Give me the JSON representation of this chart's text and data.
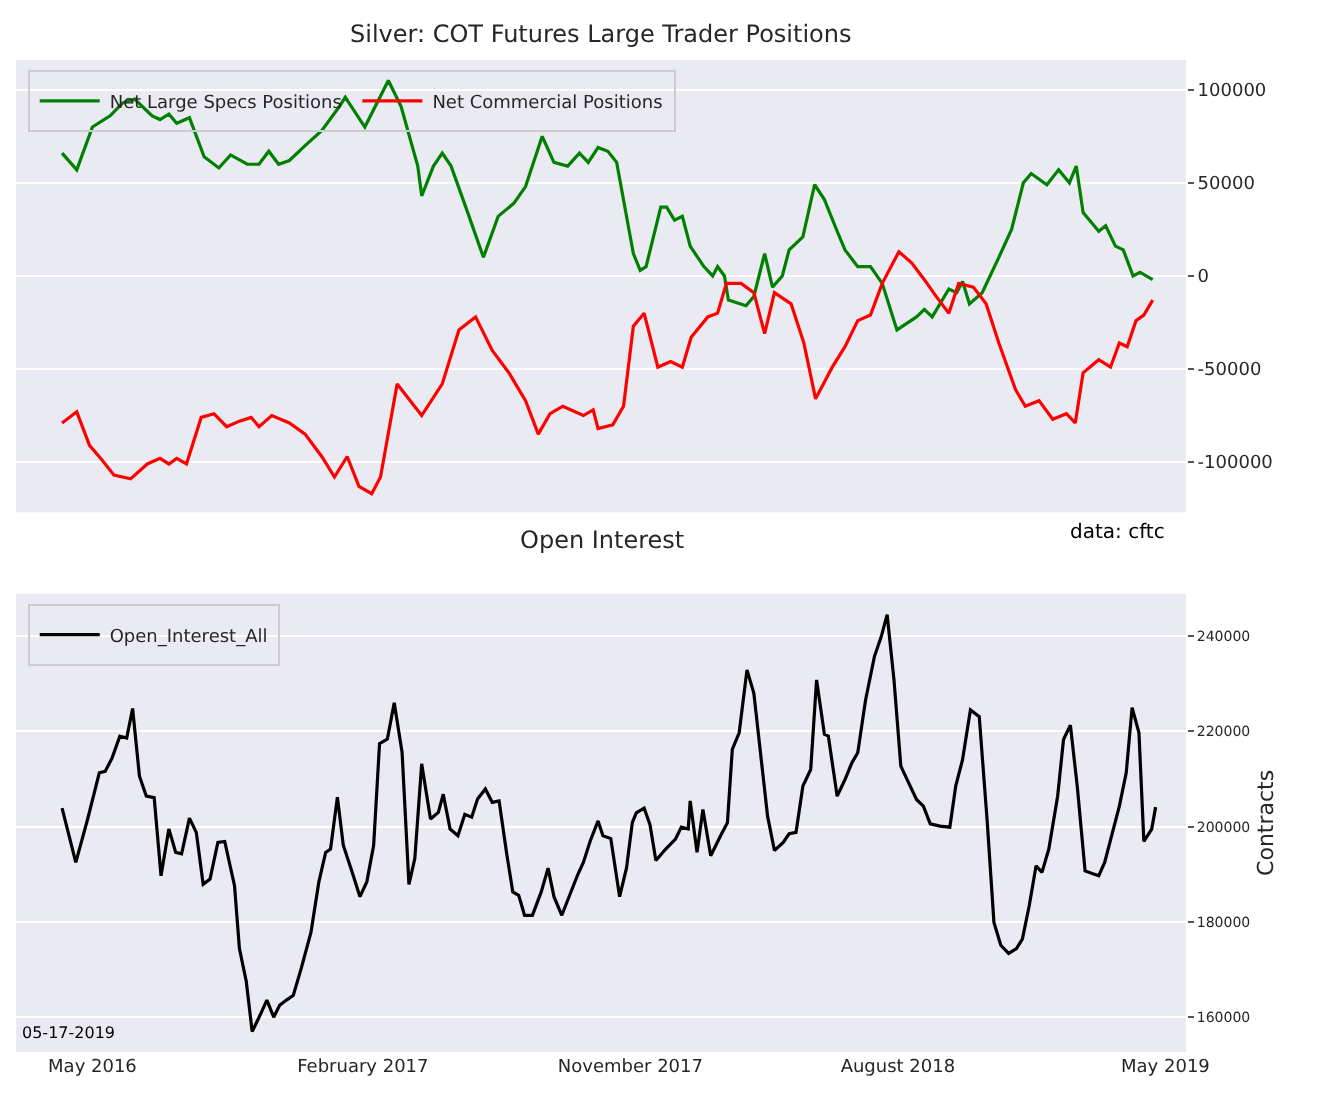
{
  "chart_data": [
    {
      "type": "line",
      "title": "Silver: COT Futures Large Trader Positions",
      "annotations": [
        "data: cftc"
      ],
      "xlim": [
        "2016-02-13",
        "2019-05-22"
      ],
      "ylim": [
        -127000,
        116000
      ],
      "yticks": [
        -100000,
        -50000,
        0,
        50000,
        100000
      ],
      "tick_labels": "y",
      "grid": "y",
      "legend": "top left",
      "series": [
        {
          "name": "Net Large Specs Positions",
          "color": "#008000",
          "x": [
            "2016-03-31",
            "2016-04-15",
            "2016-05-01",
            "2016-05-19",
            "2016-06-01",
            "2016-06-13",
            "2016-07-01",
            "2016-07-09",
            "2016-07-18",
            "2016-07-26",
            "2016-08-08",
            "2016-08-23",
            "2016-09-07",
            "2016-09-19",
            "2016-10-06",
            "2016-10-18",
            "2016-10-28",
            "2016-11-07",
            "2016-11-18",
            "2016-12-04",
            "2016-12-21",
            "2017-01-08",
            "2017-01-14",
            "2017-02-03",
            "2017-02-27",
            "2017-03-12",
            "2017-03-29",
            "2017-04-02",
            "2017-04-14",
            "2017-04-23",
            "2017-05-02",
            "2017-05-19",
            "2017-06-04",
            "2017-06-19",
            "2017-07-05",
            "2017-07-17",
            "2017-08-03",
            "2017-08-15",
            "2017-08-29",
            "2017-09-10",
            "2017-09-19",
            "2017-09-29",
            "2017-10-09",
            "2017-10-18",
            "2017-11-04",
            "2017-11-11",
            "2017-11-17",
            "2017-12-02",
            "2017-12-08",
            "2017-12-16",
            "2017-12-24",
            "2018-01-01",
            "2018-01-15",
            "2018-01-24",
            "2018-01-29",
            "2018-02-05",
            "2018-02-09",
            "2018-02-27",
            "2018-03-07",
            "2018-03-18",
            "2018-03-26",
            "2018-04-05",
            "2018-04-12",
            "2018-04-26",
            "2018-05-08",
            "2018-05-18",
            "2018-05-31",
            "2018-06-08",
            "2018-06-21",
            "2018-07-04",
            "2018-07-16",
            "2018-07-31",
            "2018-08-20",
            "2018-08-28",
            "2018-09-05",
            "2018-09-22",
            "2018-09-30",
            "2018-10-06",
            "2018-10-13",
            "2018-10-26",
            "2018-11-12",
            "2018-11-25",
            "2018-12-07",
            "2018-12-15",
            "2018-12-31",
            "2019-01-12",
            "2019-01-23",
            "2019-01-30",
            "2019-02-06",
            "2019-02-22",
            "2019-03-01",
            "2019-03-11",
            "2019-03-19",
            "2019-03-29",
            "2019-04-05",
            "2019-04-18"
          ],
          "values": [
            66000,
            57000,
            80000,
            86000,
            93000,
            95000,
            86000,
            84000,
            87000,
            82000,
            85000,
            64000,
            58000,
            65000,
            60000,
            60000,
            67000,
            60000,
            62000,
            70000,
            78000,
            91000,
            96000,
            80000,
            105000,
            91000,
            59000,
            43000,
            59000,
            66000,
            59000,
            34000,
            10000,
            32000,
            39000,
            48000,
            75000,
            61000,
            59000,
            66000,
            61000,
            69000,
            67000,
            61000,
            12000,
            3000,
            5000,
            37000,
            37000,
            30000,
            32000,
            16000,
            5000,
            0,
            5000,
            0,
            -13000,
            -16000,
            -11000,
            12000,
            -6000,
            0,
            14000,
            21000,
            49000,
            41000,
            24000,
            14000,
            5000,
            5000,
            -4000,
            -29000,
            -22000,
            -18000,
            -22000,
            -7000,
            -9000,
            -3000,
            -15000,
            -9000,
            10000,
            25000,
            50000,
            55000,
            49000,
            57000,
            50000,
            59000,
            34000,
            24000,
            27000,
            16000,
            14000,
            0,
            2000,
            -2000
          ]
        },
        {
          "name": "Net Commercial Positions",
          "color": "#ff0000",
          "x": [
            "2016-03-31",
            "2016-04-15",
            "2016-04-28",
            "2016-05-11",
            "2016-05-23",
            "2016-06-09",
            "2016-06-26",
            "2016-07-09",
            "2016-07-18",
            "2016-07-26",
            "2016-08-05",
            "2016-08-20",
            "2016-09-02",
            "2016-09-15",
            "2016-09-28",
            "2016-10-10",
            "2016-10-18",
            "2016-10-31",
            "2016-11-18",
            "2016-12-04",
            "2016-12-21",
            "2017-01-03",
            "2017-01-16",
            "2017-01-28",
            "2017-02-10",
            "2017-02-19",
            "2017-03-08",
            "2017-04-02",
            "2017-04-23",
            "2017-05-10",
            "2017-05-27",
            "2017-06-13",
            "2017-06-30",
            "2017-07-17",
            "2017-07-30",
            "2017-08-11",
            "2017-08-24",
            "2017-09-14",
            "2017-09-24",
            "2017-09-29",
            "2017-10-14",
            "2017-10-25",
            "2017-11-04",
            "2017-11-15",
            "2017-11-29",
            "2017-12-12",
            "2017-12-24",
            "2018-01-02",
            "2018-01-19",
            "2018-01-29",
            "2018-02-07",
            "2018-02-22",
            "2018-03-07",
            "2018-03-18",
            "2018-03-28",
            "2018-04-14",
            "2018-04-27",
            "2018-05-09",
            "2018-05-26",
            "2018-06-08",
            "2018-06-21",
            "2018-07-04",
            "2018-07-16",
            "2018-08-02",
            "2018-08-15",
            "2018-08-28",
            "2018-09-09",
            "2018-09-22",
            "2018-10-02",
            "2018-10-17",
            "2018-10-30",
            "2018-11-12",
            "2018-11-29",
            "2018-12-09",
            "2018-12-23",
            "2019-01-06",
            "2019-01-20",
            "2019-01-29",
            "2019-02-06",
            "2019-02-22",
            "2019-03-06",
            "2019-03-15",
            "2019-03-23",
            "2019-04-01",
            "2019-04-09",
            "2019-04-18"
          ],
          "values": [
            -79000,
            -73000,
            -91000,
            -99000,
            -107000,
            -109000,
            -101000,
            -98000,
            -101000,
            -98000,
            -101000,
            -76000,
            -74000,
            -81000,
            -78000,
            -76000,
            -81000,
            -75000,
            -79000,
            -85000,
            -97000,
            -108000,
            -97000,
            -113000,
            -117000,
            -108000,
            -58000,
            -75000,
            -58000,
            -29000,
            -22000,
            -40000,
            -52000,
            -67000,
            -85000,
            -74000,
            -70000,
            -75000,
            -72000,
            -82000,
            -80000,
            -70000,
            -27000,
            -20000,
            -49000,
            -46000,
            -49000,
            -33000,
            -22000,
            -20000,
            -4000,
            -4000,
            -9000,
            -31000,
            -9000,
            -15000,
            -36000,
            -66000,
            -49000,
            -38000,
            -24000,
            -21000,
            -4000,
            13000,
            7000,
            -2000,
            -11000,
            -20000,
            -4000,
            -6000,
            -15000,
            -36000,
            -61000,
            -70000,
            -67000,
            -77000,
            -74000,
            -79000,
            -52000,
            -45000,
            -49000,
            -36000,
            -38000,
            -24000,
            -21000,
            -13000
          ]
        }
      ]
    },
    {
      "type": "line",
      "title": "Open Interest",
      "ylabel": "Contracts",
      "annotations": [
        "05-17-2019"
      ],
      "xlim": [
        "2016-02-13",
        "2019-05-22"
      ],
      "xticks": [
        {
          "value": "2016-05-01",
          "label": "May 2016"
        },
        {
          "value": "2017-02-01",
          "label": "February 2017"
        },
        {
          "value": "2017-11-01",
          "label": "November 2017"
        },
        {
          "value": "2018-08-01",
          "label": "August 2018"
        },
        {
          "value": "2019-05-01",
          "label": "May 2019"
        }
      ],
      "ylim": [
        152700,
        248900
      ],
      "yticks": [
        160000,
        180000,
        200000,
        220000,
        240000
      ],
      "grid": "y",
      "legend": "top left",
      "series": [
        {
          "name": "Open_Interest_All",
          "color": "#000000",
          "x": [
            "2016-03-31",
            "2016-04-14",
            "2016-04-26",
            "2016-05-08",
            "2016-05-14",
            "2016-05-21",
            "2016-05-29",
            "2016-06-05",
            "2016-06-11",
            "2016-06-18",
            "2016-06-25",
            "2016-07-03",
            "2016-07-10",
            "2016-07-18",
            "2016-07-25",
            "2016-07-31",
            "2016-08-08",
            "2016-08-15",
            "2016-08-22",
            "2016-08-29",
            "2016-09-06",
            "2016-09-13",
            "2016-09-23",
            "2016-09-28",
            "2016-10-05",
            "2016-10-11",
            "2016-10-19",
            "2016-10-26",
            "2016-11-02",
            "2016-11-08",
            "2016-11-15",
            "2016-11-22",
            "2016-11-30",
            "2016-12-10",
            "2016-12-18",
            "2016-12-25",
            "2016-12-30",
            "2017-01-06",
            "2017-01-12",
            "2017-01-21",
            "2017-01-29",
            "2017-02-05",
            "2017-02-12",
            "2017-02-18",
            "2017-02-26",
            "2017-03-05",
            "2017-03-13",
            "2017-03-20",
            "2017-03-26",
            "2017-04-02",
            "2017-04-11",
            "2017-04-19",
            "2017-04-24",
            "2017-05-01",
            "2017-05-09",
            "2017-05-16",
            "2017-05-23",
            "2017-05-29",
            "2017-06-06",
            "2017-06-13",
            "2017-06-20",
            "2017-06-28",
            "2017-07-04",
            "2017-07-10",
            "2017-07-16",
            "2017-07-24",
            "2017-08-02",
            "2017-08-09",
            "2017-08-15",
            "2017-08-23",
            "2017-08-31",
            "2017-09-08",
            "2017-09-14",
            "2017-09-21",
            "2017-09-29",
            "2017-10-04",
            "2017-10-12",
            "2017-10-21",
            "2017-10-28",
            "2017-11-03",
            "2017-11-07",
            "2017-11-15",
            "2017-11-21",
            "2017-11-27",
            "2017-12-07",
            "2017-12-17",
            "2017-12-23",
            "2017-12-30",
            "2018-01-01",
            "2018-01-08",
            "2018-01-14",
            "2018-01-22",
            "2018-02-01",
            "2018-02-08",
            "2018-02-13",
            "2018-02-20",
            "2018-02-28",
            "2018-03-07",
            "2018-03-13",
            "2018-03-21",
            "2018-03-28",
            "2018-04-06",
            "2018-04-12",
            "2018-04-19",
            "2018-04-26",
            "2018-05-04",
            "2018-05-10",
            "2018-05-18",
            "2018-05-22",
            "2018-05-31",
            "2018-06-08",
            "2018-06-15",
            "2018-06-21",
            "2018-06-29",
            "2018-07-08",
            "2018-07-15",
            "2018-07-21",
            "2018-07-28",
            "2018-08-04",
            "2018-08-12",
            "2018-08-20",
            "2018-08-27",
            "2018-09-03",
            "2018-09-13",
            "2018-09-23",
            "2018-09-29",
            "2018-10-06",
            "2018-10-14",
            "2018-10-23",
            "2018-10-31",
            "2018-11-07",
            "2018-11-14",
            "2018-11-22",
            "2018-11-30",
            "2018-12-06",
            "2018-12-13",
            "2018-12-20",
            "2018-12-26",
            "2019-01-02",
            "2019-01-11",
            "2019-01-17",
            "2019-01-24",
            "2019-01-31",
            "2019-02-08",
            "2019-02-16",
            "2019-02-22",
            "2019-02-28",
            "2019-03-08",
            "2019-03-15",
            "2019-03-22",
            "2019-03-28",
            "2019-04-04",
            "2019-04-09",
            "2019-04-17",
            "2019-04-21"
          ],
          "values": [
            203900,
            192500,
            201500,
            211300,
            211600,
            214400,
            219000,
            218600,
            224800,
            210600,
            206400,
            206100,
            189700,
            199500,
            194600,
            194300,
            201800,
            198800,
            187900,
            189000,
            196700,
            196900,
            187600,
            174400,
            167500,
            157000,
            160400,
            163600,
            160000,
            162500,
            163600,
            164600,
            170200,
            177800,
            188300,
            194600,
            195300,
            206200,
            196100,
            190500,
            185300,
            188400,
            196100,
            217400,
            218400,
            226000,
            215600,
            187900,
            193300,
            213200,
            201600,
            203000,
            206800,
            199500,
            198100,
            202600,
            202000,
            205800,
            207900,
            205100,
            205400,
            194000,
            186300,
            185600,
            181400,
            181400,
            186300,
            191300,
            185300,
            181400,
            185600,
            189800,
            192500,
            197000,
            201200,
            198100,
            197500,
            185300,
            191300,
            200900,
            202900,
            203900,
            200400,
            192900,
            195300,
            197400,
            199900,
            199500,
            205400,
            194600,
            203600,
            193900,
            198100,
            200800,
            216200,
            219700,
            232900,
            228000,
            216900,
            202200,
            195000,
            196700,
            198500,
            198800,
            208500,
            212000,
            230800,
            219400,
            219000,
            206400,
            209900,
            213400,
            215500,
            226600,
            235700,
            239900,
            244500,
            230800,
            212700,
            209200,
            205700,
            204300,
            200600,
            200100,
            199900,
            208500,
            214100,
            224500,
            223100,
            201500,
            179900,
            175100,
            173400,
            174400,
            176400,
            183400,
            191800,
            190400,
            195300,
            206400,
            218300,
            221300,
            208500,
            190700,
            190100,
            189700,
            192500,
            198800,
            204300,
            211300,
            225000,
            219700,
            196900,
            199500,
            204100
          ]
        }
      ]
    }
  ]
}
